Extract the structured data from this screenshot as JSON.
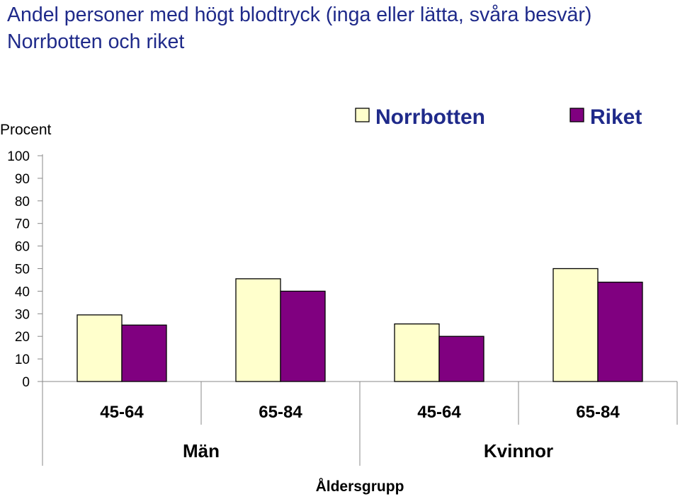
{
  "chart_data": {
    "type": "bar",
    "title": "Andel personer med högt blodtryck (inga eller lätta, svåra besvär) Norrbotten och riket",
    "ylabel": "Procent",
    "xlabel": "Åldersgrupp",
    "ylim": [
      0,
      100
    ],
    "yticks": [
      "100",
      "90",
      "80",
      "70",
      "60",
      "50",
      "40",
      "30",
      "20",
      "10",
      "0"
    ],
    "categories": [
      "45-64",
      "65-84",
      "45-64",
      "65-84"
    ],
    "groups": [
      "Män",
      "Kvinnor"
    ],
    "series": [
      {
        "name": "Norrbotten",
        "color": "#ffffcc",
        "values": [
          29.5,
          45.5,
          25.5,
          50
        ]
      },
      {
        "name": "Riket",
        "color": "#800080",
        "values": [
          25,
          40,
          20,
          44
        ]
      }
    ],
    "legend_position": "top-right",
    "grid": false
  }
}
